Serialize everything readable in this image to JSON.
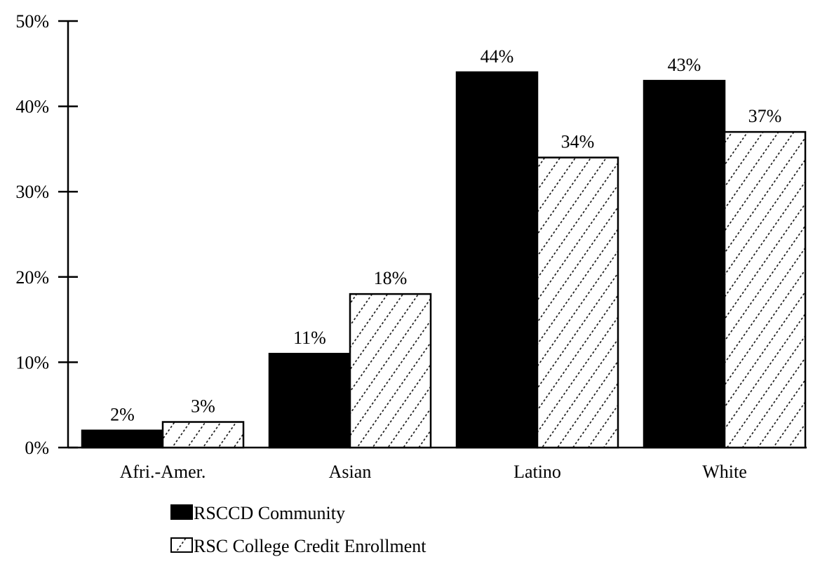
{
  "chart_data": {
    "type": "bar",
    "categories": [
      "Afri.-Amer.",
      "Asian",
      "Latino",
      "White"
    ],
    "series": [
      {
        "name": "RSCCD Community",
        "values": [
          2,
          11,
          44,
          43
        ],
        "labels": [
          "2%",
          "11%",
          "44%",
          "43%"
        ],
        "fill": "#000000",
        "pattern": "solid"
      },
      {
        "name": "RSC College Credit Enrollment",
        "values": [
          3,
          18,
          34,
          37
        ],
        "labels": [
          "3%",
          "18%",
          "34%",
          "37%"
        ],
        "fill": "#ffffff",
        "pattern": "dotted-diagonal"
      }
    ],
    "yticks": [
      0,
      10,
      20,
      30,
      40,
      50
    ],
    "ytick_labels": [
      "0%",
      "10%",
      "20%",
      "30%",
      "40%",
      "50%"
    ],
    "ylim": [
      0,
      50
    ],
    "grid": false,
    "legend_position": "bottom"
  }
}
